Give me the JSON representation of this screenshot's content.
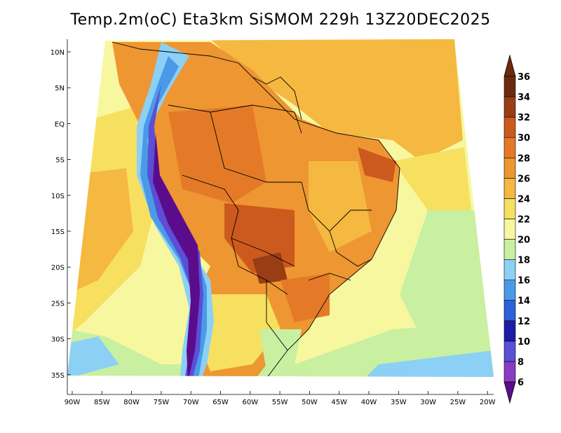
{
  "title": "Temp.2m(oC) Eta3km SiSMOM 229h 13Z20DEC2025",
  "latitude_labels": [
    "10N",
    "5N",
    "EQ",
    "5S",
    "10S",
    "15S",
    "20S",
    "25S",
    "30S",
    "35S"
  ],
  "longitude_labels": [
    "90W",
    "85W",
    "80W",
    "75W",
    "70W",
    "65W",
    "60W",
    "55W",
    "50W",
    "45W",
    "40W",
    "35W",
    "30W",
    "25W",
    "20W"
  ],
  "colorbar": {
    "labels": [
      "6",
      "8",
      "10",
      "12",
      "14",
      "16",
      "18",
      "20",
      "22",
      "24",
      "26",
      "28",
      "30",
      "32",
      "34",
      "36"
    ],
    "colors": [
      "#5b0c8c",
      "#8a3cc4",
      "#5a4fd6",
      "#1c1ca8",
      "#2b62d9",
      "#4a9ae8",
      "#8cd0f5",
      "#c8f0a0",
      "#f7f7a0",
      "#f7e060",
      "#f5b840",
      "#ee9632",
      "#e47a28",
      "#cc5a1e",
      "#9a3c14",
      "#6e2a0e"
    ]
  }
}
